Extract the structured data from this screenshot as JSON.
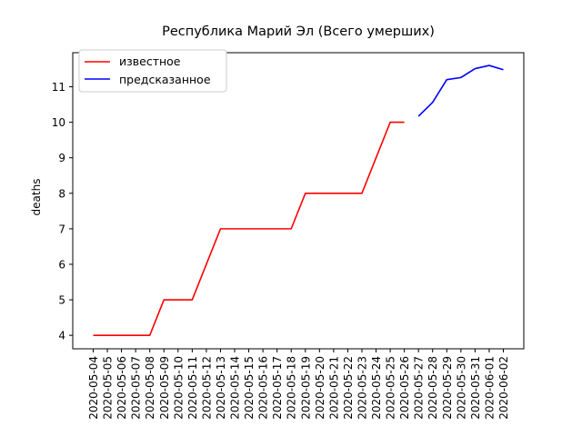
{
  "chart_data": {
    "type": "line",
    "title": "Республика Марий Эл (Всего умерших)",
    "xlabel": "",
    "ylabel": "deaths",
    "x": [
      "2020-05-04",
      "2020-05-05",
      "2020-05-06",
      "2020-05-07",
      "2020-05-08",
      "2020-05-09",
      "2020-05-10",
      "2020-05-11",
      "2020-05-12",
      "2020-05-13",
      "2020-05-14",
      "2020-05-15",
      "2020-05-16",
      "2020-05-17",
      "2020-05-18",
      "2020-05-19",
      "2020-05-20",
      "2020-05-21",
      "2020-05-22",
      "2020-05-23",
      "2020-05-24",
      "2020-05-25",
      "2020-05-26",
      "2020-05-27",
      "2020-05-28",
      "2020-05-29",
      "2020-05-30",
      "2020-05-31",
      "2020-06-01",
      "2020-06-02"
    ],
    "yticks": [
      4,
      5,
      6,
      7,
      8,
      9,
      10,
      11
    ],
    "ylim": [
      3.62,
      11.96
    ],
    "grid": false,
    "legend_position": "top-left",
    "series": [
      {
        "name": "известное",
        "color": "#ff0000",
        "points": [
          {
            "x": "2020-05-04",
            "y": 4
          },
          {
            "x": "2020-05-05",
            "y": 4
          },
          {
            "x": "2020-05-06",
            "y": 4
          },
          {
            "x": "2020-05-07",
            "y": 4
          },
          {
            "x": "2020-05-08",
            "y": 4
          },
          {
            "x": "2020-05-09",
            "y": 5
          },
          {
            "x": "2020-05-10",
            "y": 5
          },
          {
            "x": "2020-05-11",
            "y": 5
          },
          {
            "x": "2020-05-12",
            "y": 6
          },
          {
            "x": "2020-05-13",
            "y": 7
          },
          {
            "x": "2020-05-14",
            "y": 7
          },
          {
            "x": "2020-05-15",
            "y": 7
          },
          {
            "x": "2020-05-16",
            "y": 7
          },
          {
            "x": "2020-05-17",
            "y": 7
          },
          {
            "x": "2020-05-18",
            "y": 7
          },
          {
            "x": "2020-05-19",
            "y": 8
          },
          {
            "x": "2020-05-20",
            "y": 8
          },
          {
            "x": "2020-05-21",
            "y": 8
          },
          {
            "x": "2020-05-22",
            "y": 8
          },
          {
            "x": "2020-05-23",
            "y": 8
          },
          {
            "x": "2020-05-24",
            "y": 9
          },
          {
            "x": "2020-05-25",
            "y": 10
          },
          {
            "x": "2020-05-26",
            "y": 10
          }
        ]
      },
      {
        "name": "предсказанное",
        "color": "#0000ff",
        "points": [
          {
            "x": "2020-05-27",
            "y": 10.17
          },
          {
            "x": "2020-05-28",
            "y": 10.56
          },
          {
            "x": "2020-05-29",
            "y": 11.2
          },
          {
            "x": "2020-05-30",
            "y": 11.26
          },
          {
            "x": "2020-05-31",
            "y": 11.51
          },
          {
            "x": "2020-06-01",
            "y": 11.6
          },
          {
            "x": "2020-06-02",
            "y": 11.48
          }
        ]
      }
    ]
  }
}
